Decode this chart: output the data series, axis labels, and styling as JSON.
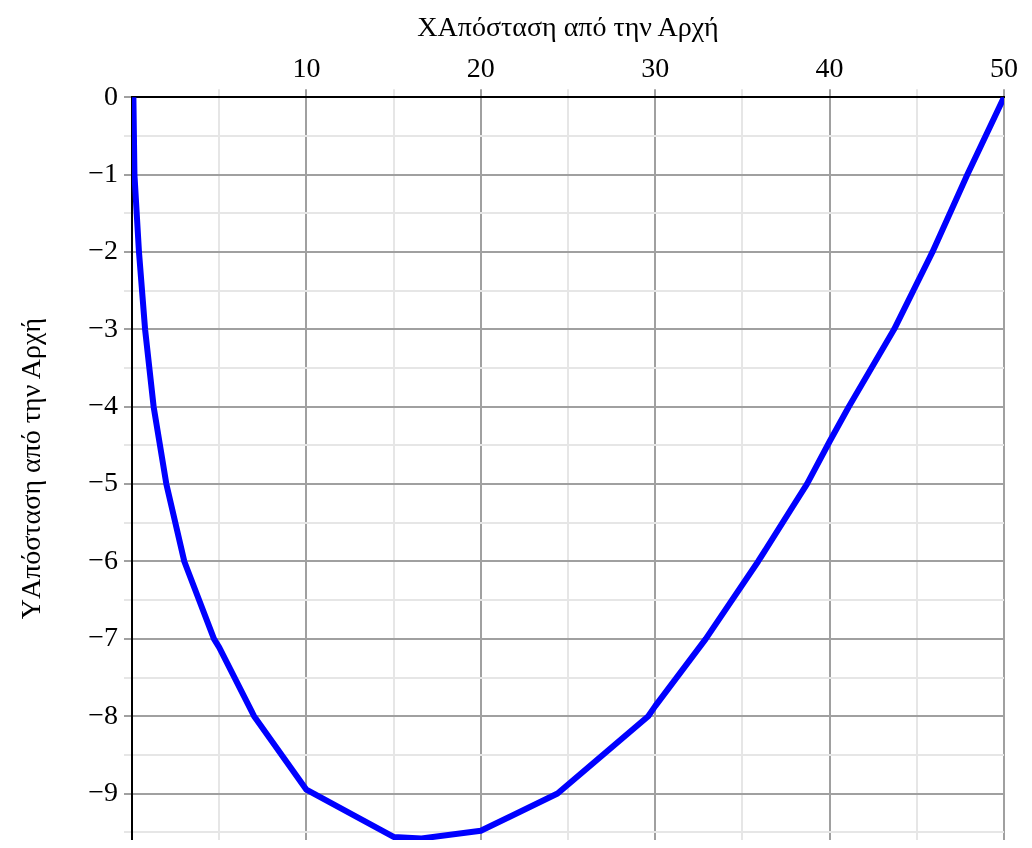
{
  "chart_data": {
    "type": "line",
    "xlabel": "XΑπόσταση από την Αρχή",
    "ylabel": "YΑπόσταση από την Αρχή",
    "x": [
      0.08,
      0.14,
      0.4,
      0.75,
      1.24,
      1.97,
      3.0,
      4.7,
      5,
      7.0,
      10,
      15,
      16.6,
      20,
      24.4,
      29.6,
      30,
      32.9,
      35.9,
      38.7,
      40,
      41.1,
      43.7,
      45.9,
      47.9,
      50
    ],
    "series": [
      {
        "color": "#0000ff",
        "values": [
          0,
          -1,
          -2,
          -3,
          -4,
          -5,
          -6,
          -7,
          -7.11,
          -8,
          -8.95,
          -9.56,
          -9.58,
          -9.48,
          -9,
          -8,
          -7.87,
          -7,
          -6,
          -5,
          -4.45,
          -4,
          -3,
          -2,
          -1,
          0
        ]
      }
    ],
    "xlim": [
      0,
      50
    ],
    "ylim": [
      -9.6,
      0
    ],
    "xticks": [
      {
        "value": 5,
        "label": null
      },
      10,
      {
        "value": 15,
        "label": null
      },
      20,
      {
        "value": 25,
        "label": null
      },
      30,
      {
        "value": 35,
        "label": null
      },
      40,
      {
        "value": 45,
        "label": null
      },
      50
    ],
    "yticks": [
      0,
      {
        "value": -0.5,
        "label": null
      },
      {
        "value": -1,
        "label": "−1"
      },
      {
        "value": -1.5,
        "label": null
      },
      {
        "value": -2,
        "label": "−2"
      },
      {
        "value": -2.5,
        "label": null
      },
      {
        "value": -3,
        "label": "−3"
      },
      {
        "value": -3.5,
        "label": null
      },
      {
        "value": -4,
        "label": "−4"
      },
      {
        "value": -4.5,
        "label": null
      },
      {
        "value": -5,
        "label": "−5"
      },
      {
        "value": -5.5,
        "label": null
      },
      {
        "value": -6,
        "label": "−6"
      },
      {
        "value": -6.5,
        "label": null
      },
      {
        "value": -7,
        "label": "−7"
      },
      {
        "value": -7.5,
        "label": null
      },
      {
        "value": -8,
        "label": "−8"
      },
      {
        "value": -8.5,
        "label": null
      },
      {
        "value": -9,
        "label": "−9"
      },
      {
        "value": -9.5,
        "label": null
      }
    ],
    "grid": true,
    "legend": false,
    "marker": "none",
    "line_style": "solid"
  }
}
